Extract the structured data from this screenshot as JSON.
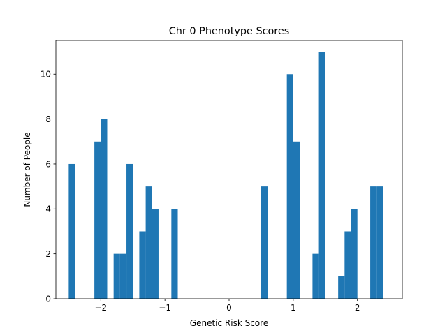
{
  "chart_data": {
    "type": "bar",
    "title": "Chr 0 Phenotype Scores",
    "xlabel": "Genetic Risk Score",
    "ylabel": "Number of People",
    "xlim": [
      -2.7,
      2.7
    ],
    "ylim": [
      0,
      11.5
    ],
    "bin_width": 0.1,
    "xticks": [
      -2,
      -1,
      0,
      1,
      2
    ],
    "xtick_labels": [
      "−2",
      "−1",
      "0",
      "1",
      "2"
    ],
    "yticks": [
      0,
      2,
      4,
      6,
      8,
      10
    ],
    "ytick_labels": [
      "0",
      "2",
      "4",
      "6",
      "8",
      "10"
    ],
    "bar_color": "#1f77b4",
    "grid": false,
    "bins": [
      {
        "x": -2.45,
        "count": 6
      },
      {
        "x": -2.05,
        "count": 7
      },
      {
        "x": -1.95,
        "count": 8
      },
      {
        "x": -1.75,
        "count": 2
      },
      {
        "x": -1.65,
        "count": 2
      },
      {
        "x": -1.55,
        "count": 6
      },
      {
        "x": -1.35,
        "count": 3
      },
      {
        "x": -1.25,
        "count": 5
      },
      {
        "x": -1.15,
        "count": 4
      },
      {
        "x": -0.85,
        "count": 4
      },
      {
        "x": 0.55,
        "count": 5
      },
      {
        "x": 0.95,
        "count": 10
      },
      {
        "x": 1.05,
        "count": 7
      },
      {
        "x": 1.35,
        "count": 2
      },
      {
        "x": 1.45,
        "count": 11
      },
      {
        "x": 1.75,
        "count": 1
      },
      {
        "x": 1.85,
        "count": 3
      },
      {
        "x": 1.95,
        "count": 4
      },
      {
        "x": 2.25,
        "count": 5
      },
      {
        "x": 2.35,
        "count": 5
      }
    ]
  }
}
